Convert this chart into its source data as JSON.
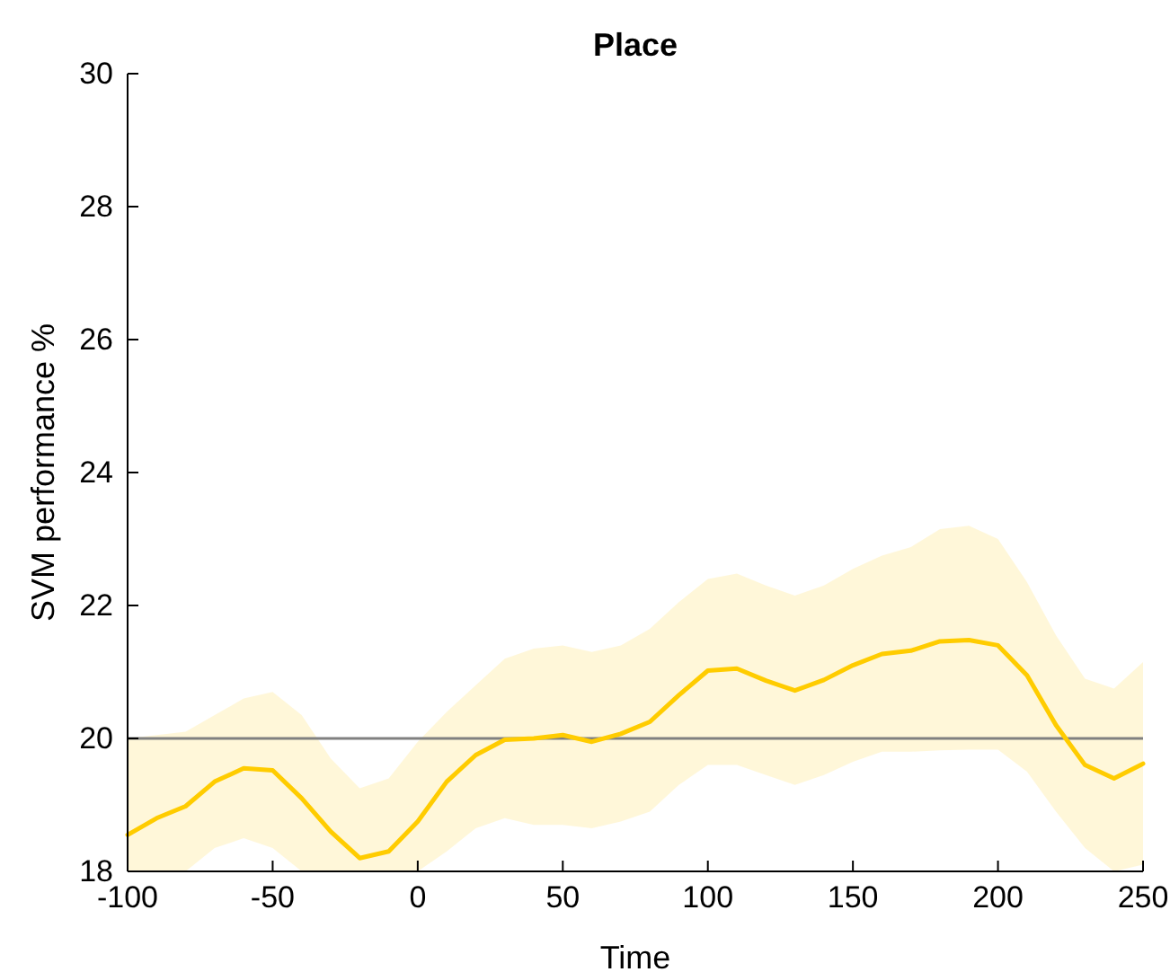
{
  "chart_data": {
    "type": "line",
    "title": "Place",
    "xlabel": "Time",
    "ylabel": "SVM performance %",
    "x": [
      -100,
      -90,
      -80,
      -70,
      -60,
      -50,
      -40,
      -30,
      -20,
      -10,
      0,
      10,
      20,
      30,
      40,
      50,
      60,
      70,
      80,
      90,
      100,
      110,
      120,
      130,
      140,
      150,
      160,
      170,
      180,
      190,
      200,
      210,
      220,
      230,
      240,
      250
    ],
    "series": [
      {
        "color": "#ffcc00",
        "values": [
          18.55,
          18.8,
          18.98,
          19.35,
          19.55,
          19.52,
          19.1,
          18.6,
          18.2,
          18.3,
          18.75,
          19.35,
          19.75,
          19.98,
          20.0,
          20.05,
          19.95,
          20.07,
          20.25,
          20.65,
          21.02,
          21.05,
          20.87,
          20.72,
          20.88,
          21.1,
          21.27,
          21.32,
          21.46,
          21.48,
          21.4,
          20.95,
          20.2,
          19.6,
          19.4,
          19.62
        ],
        "upper": [
          20.0,
          20.05,
          20.1,
          20.35,
          20.6,
          20.7,
          20.35,
          19.7,
          19.25,
          19.4,
          19.95,
          20.4,
          20.8,
          21.2,
          21.35,
          21.4,
          21.3,
          21.4,
          21.65,
          22.05,
          22.4,
          22.48,
          22.3,
          22.15,
          22.3,
          22.55,
          22.75,
          22.88,
          23.15,
          23.2,
          23.0,
          22.35,
          21.55,
          20.9,
          20.75,
          21.15
        ],
        "lower": [
          18.0,
          18.0,
          18.0,
          18.35,
          18.5,
          18.35,
          18.0,
          18.0,
          18.0,
          18.0,
          18.0,
          18.3,
          18.65,
          18.8,
          18.7,
          18.7,
          18.65,
          18.75,
          18.9,
          19.3,
          19.6,
          19.6,
          19.45,
          19.3,
          19.45,
          19.65,
          19.8,
          19.8,
          19.82,
          19.83,
          19.83,
          19.5,
          18.9,
          18.35,
          18.0,
          18.1
        ]
      }
    ],
    "xlim": [
      -100,
      250
    ],
    "xticks": [
      -100,
      -50,
      0,
      50,
      100,
      150,
      200,
      250
    ],
    "ylim": [
      18,
      30
    ],
    "yticks": [
      18,
      20,
      22,
      24,
      26,
      28,
      30
    ],
    "ref_lines": [
      {
        "axis": "y",
        "value": 20,
        "color": "#808080"
      }
    ],
    "grid": false
  }
}
